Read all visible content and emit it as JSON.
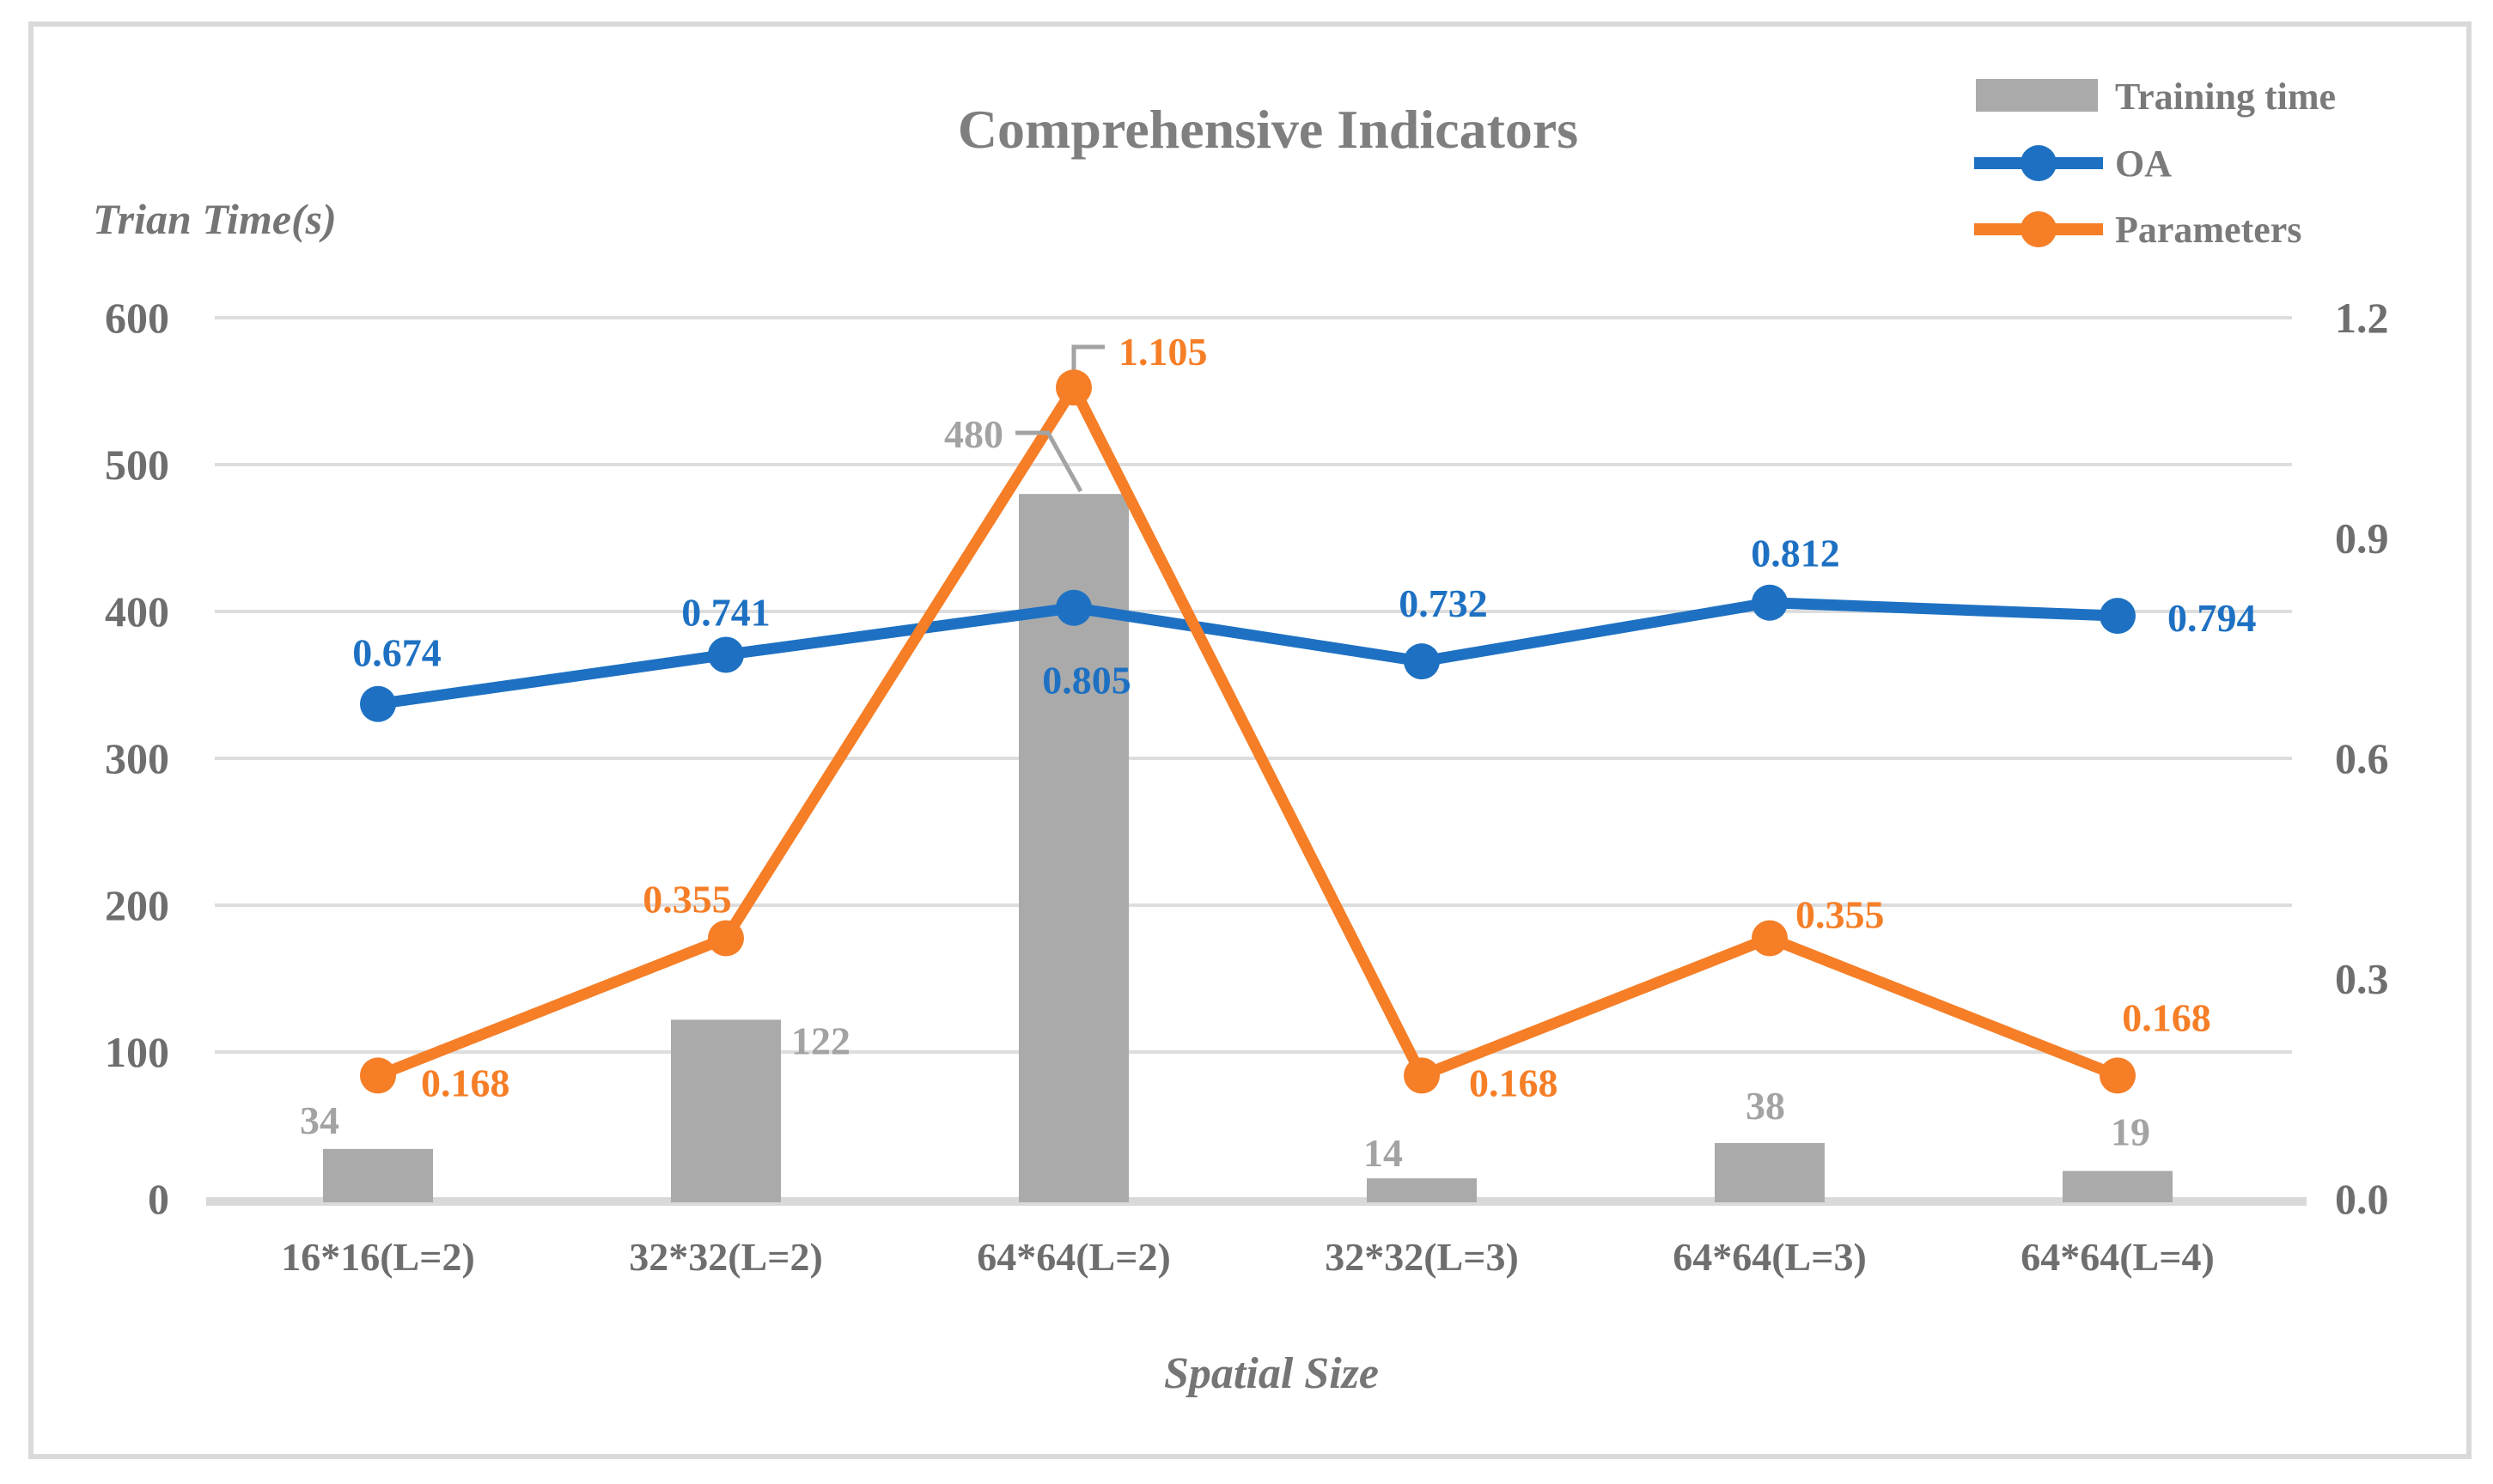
{
  "title": "Comprehensive Indicators",
  "axes": {
    "left_title": "Trian Time(s)",
    "x_title": "Spatial Size"
  },
  "legend": {
    "items": [
      {
        "label": "Training time",
        "type": "bar-swatch",
        "color": "#AAAAAA"
      },
      {
        "label": "OA",
        "type": "line-marker",
        "color": "#1E71C2"
      },
      {
        "label": "Parameters",
        "type": "line-marker",
        "color": "#F57E27"
      }
    ]
  },
  "colors": {
    "bar": "#AAAAAA",
    "oa_line": "#1E71C2",
    "parameters_line": "#F57E27",
    "bar_label": "#A3A3A3",
    "leader_line": "#A3A3A3",
    "gridline": "#DDDDDD",
    "axis_band": "#D9D9D9",
    "frame_border": "#D9D9D9"
  },
  "chart_data": {
    "type": "combo-bar-line",
    "title": "Comprehensive Indicators",
    "xlabel": "Spatial Size",
    "ylabel_left": "Trian Time(s)",
    "categories": [
      "16*16(L=2)",
      "32*32(L=2)",
      "64*64(L=2)",
      "32*32(L=3)",
      "64*64(L=3)",
      "64*64(L=4)"
    ],
    "left_axis": {
      "min": 0,
      "max": 600,
      "tick_step": 100,
      "tick_labels": [
        "0",
        "100",
        "200",
        "300",
        "400",
        "500",
        "600"
      ]
    },
    "right_axis": {
      "min": 0.0,
      "max": 1.2,
      "tick_step": 0.3,
      "tick_labels": [
        "0.0",
        "0.3",
        "0.6",
        "0.9",
        "1.2"
      ]
    },
    "grid": true,
    "legend_position": "top-right",
    "series": [
      {
        "name": "Training time",
        "type": "bar",
        "axis": "left",
        "values": [
          34,
          122,
          480,
          14,
          38,
          19
        ],
        "labels": [
          "34",
          "122",
          "480",
          "14",
          "38",
          "19"
        ]
      },
      {
        "name": "OA",
        "type": "line",
        "axis": "right",
        "values": [
          0.674,
          0.741,
          0.805,
          0.732,
          0.812,
          0.794
        ],
        "labels": [
          "0.674",
          "0.741",
          "0.805",
          "0.732",
          "0.812",
          "0.794"
        ]
      },
      {
        "name": "Parameters",
        "type": "line",
        "axis": "right",
        "values": [
          0.168,
          0.355,
          1.105,
          0.168,
          0.355,
          0.168
        ],
        "labels": [
          "0.168",
          "0.355",
          "1.105",
          "0.168",
          "0.355",
          "0.168"
        ]
      }
    ]
  }
}
